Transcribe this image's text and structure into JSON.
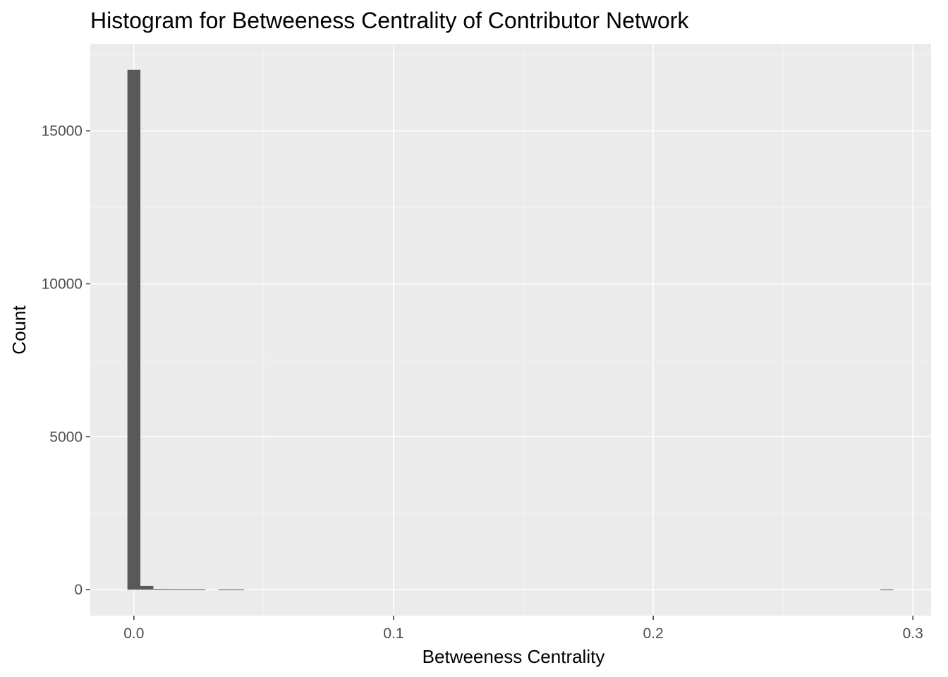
{
  "chart_data": {
    "type": "bar",
    "title": "Histogram for Betweeness Centrality of Contributor Network",
    "xlabel": "Betweeness Centrality",
    "ylabel": "Count",
    "xlim": [
      -0.0168,
      0.307
    ],
    "ylim": [
      -850,
      17850
    ],
    "x_ticks": [
      0.0,
      0.1,
      0.2,
      0.3
    ],
    "x_tick_labels": [
      "0.0",
      "0.1",
      "0.2",
      "0.3"
    ],
    "y_ticks": [
      0,
      5000,
      10000,
      15000
    ],
    "y_tick_labels": [
      "0",
      "5000",
      "10000",
      "15000"
    ],
    "grid": true,
    "bin_width": 0.005,
    "bins": [
      {
        "x0": -0.0025,
        "x1": 0.0025,
        "count": 17000
      },
      {
        "x0": 0.0025,
        "x1": 0.0075,
        "count": 120
      },
      {
        "x0": 0.0075,
        "x1": 0.0125,
        "count": 25
      },
      {
        "x0": 0.0125,
        "x1": 0.0175,
        "count": 20
      },
      {
        "x0": 0.0175,
        "x1": 0.0225,
        "count": 15
      },
      {
        "x0": 0.0225,
        "x1": 0.0275,
        "count": 15
      },
      {
        "x0": 0.0325,
        "x1": 0.0375,
        "count": 10
      },
      {
        "x0": 0.0375,
        "x1": 0.0425,
        "count": 10
      },
      {
        "x0": 0.2875,
        "x1": 0.2925,
        "count": 8
      }
    ],
    "colors": {
      "panel_background": "#ebebeb",
      "grid_major": "#ffffff",
      "grid_minor": "#f5f5f5",
      "bar_fill": "#595959",
      "tick_color": "#333333"
    }
  }
}
